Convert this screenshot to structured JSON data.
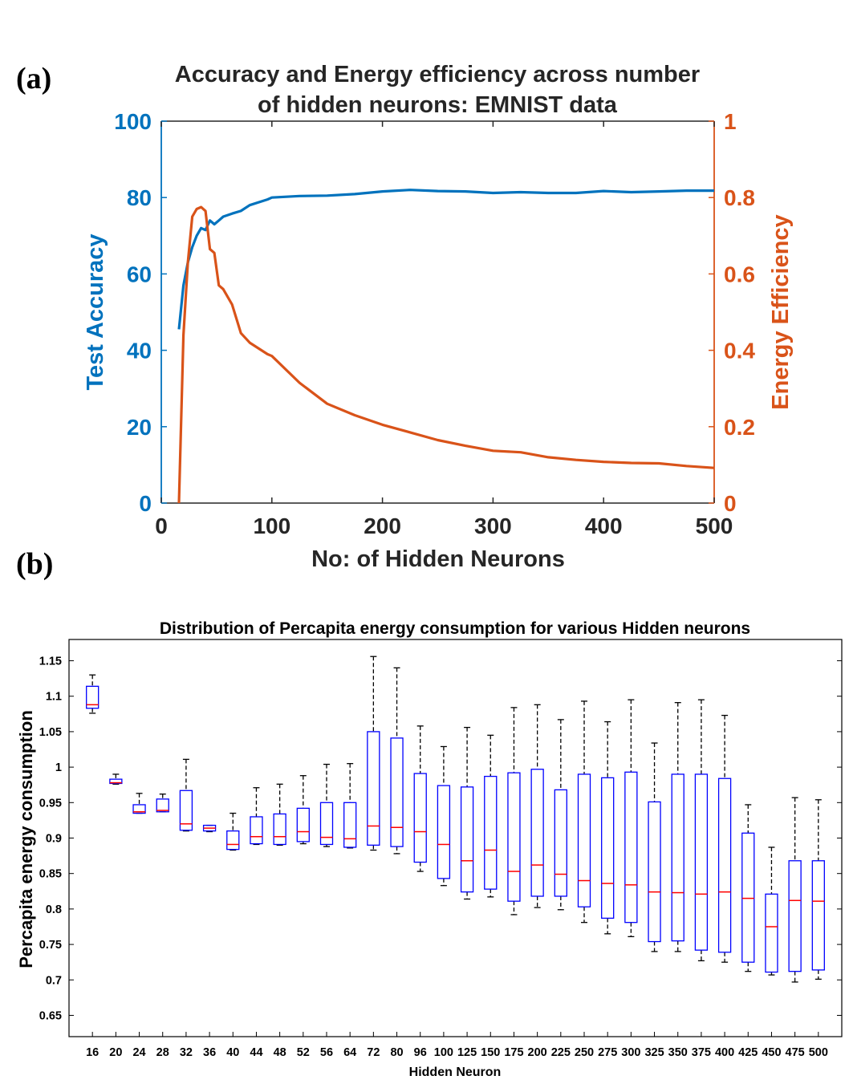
{
  "panel_a_label": "(a)",
  "panel_b_label": "(b)",
  "colors": {
    "blue": "#0072BD",
    "orange": "#D95319",
    "box": "#0000FF",
    "median": "#FF0000",
    "axis": "#262626"
  },
  "chart_data": [
    {
      "type": "line",
      "title_lines": [
        "Accuracy and Energy efficiency across number",
        "of hidden neurons: EMNIST data"
      ],
      "xlabel": "No: of Hidden Neurons",
      "ylabel_left": "Test Accuracy",
      "ylabel_right": "Energy Efficiency",
      "xlim": [
        0,
        500
      ],
      "ylim_left": [
        0,
        100
      ],
      "ylim_right": [
        0,
        1
      ],
      "xticks": [
        0,
        100,
        200,
        300,
        400,
        500
      ],
      "yticks_left": [
        0,
        20,
        40,
        60,
        80,
        100
      ],
      "yticks_right": [
        0,
        0.2,
        0.4,
        0.6,
        0.8,
        1
      ],
      "yticklabels_right": [
        "0",
        "0.2",
        "0.4",
        "0.6",
        "0.8",
        "1"
      ],
      "grid": false,
      "series": [
        {
          "axis": "left",
          "color": "#0072BD",
          "x": [
            16,
            20,
            24,
            28,
            32,
            36,
            40,
            44,
            48,
            52,
            56,
            64,
            72,
            80,
            96,
            100,
            125,
            150,
            175,
            200,
            225,
            250,
            275,
            300,
            325,
            350,
            375,
            400,
            425,
            450,
            475,
            500
          ],
          "y": [
            45.5,
            57,
            63,
            67,
            70,
            72,
            71.5,
            74,
            73,
            74,
            75,
            75.8,
            76.5,
            78,
            79.5,
            80,
            80.4,
            80.5,
            80.9,
            81.6,
            82,
            81.7,
            81.6,
            81.2,
            81.4,
            81.2,
            81.2,
            81.7,
            81.4,
            81.6,
            81.8,
            81.8
          ]
        },
        {
          "axis": "right",
          "color": "#D95319",
          "x": [
            16,
            20,
            24,
            28,
            32,
            36,
            40,
            44,
            48,
            52,
            56,
            64,
            72,
            80,
            96,
            100,
            125,
            150,
            175,
            200,
            225,
            250,
            275,
            300,
            325,
            350,
            375,
            400,
            425,
            450,
            475,
            500
          ],
          "y": [
            0.0,
            0.44,
            0.63,
            0.75,
            0.77,
            0.775,
            0.765,
            0.665,
            0.655,
            0.57,
            0.56,
            0.52,
            0.445,
            0.42,
            0.39,
            0.385,
            0.315,
            0.26,
            0.23,
            0.205,
            0.185,
            0.165,
            0.15,
            0.137,
            0.133,
            0.12,
            0.113,
            0.108,
            0.105,
            0.104,
            0.097,
            0.092
          ]
        }
      ]
    },
    {
      "type": "box",
      "title": "Distribution of Percapita energy consumption for various Hidden neurons",
      "xlabel": "Hidden Neuron",
      "ylabel": "Percapita energy consumption",
      "ylim": [
        0.62,
        1.18
      ],
      "yticks": [
        0.65,
        0.7,
        0.75,
        0.8,
        0.85,
        0.9,
        0.95,
        1,
        1.05,
        1.1,
        1.15
      ],
      "categories": [
        "16",
        "20",
        "24",
        "28",
        "32",
        "36",
        "40",
        "44",
        "48",
        "52",
        "56",
        "64",
        "72",
        "80",
        "96",
        "100",
        "125",
        "150",
        "175",
        "200",
        "225",
        "250",
        "275",
        "300",
        "325",
        "350",
        "375",
        "400",
        "425",
        "450",
        "475",
        "500"
      ],
      "boxes": [
        {
          "min": 1.076,
          "q1": 1.083,
          "median": 1.088,
          "q3": 1.114,
          "max": 1.13
        },
        {
          "min": 0.976,
          "q1": 0.977,
          "median": 0.978,
          "q3": 0.983,
          "max": 0.99
        },
        {
          "min": 0.935,
          "q1": 0.935,
          "median": 0.937,
          "q3": 0.947,
          "max": 0.963
        },
        {
          "min": 0.937,
          "q1": 0.937,
          "median": 0.939,
          "q3": 0.955,
          "max": 0.962
        },
        {
          "min": 0.91,
          "q1": 0.911,
          "median": 0.92,
          "q3": 0.967,
          "max": 1.011
        },
        {
          "min": 0.909,
          "q1": 0.91,
          "median": 0.914,
          "q3": 0.918,
          "max": 0.918
        },
        {
          "min": 0.883,
          "q1": 0.884,
          "median": 0.891,
          "q3": 0.91,
          "max": 0.935
        },
        {
          "min": 0.891,
          "q1": 0.892,
          "median": 0.902,
          "q3": 0.93,
          "max": 0.971
        },
        {
          "min": 0.89,
          "q1": 0.891,
          "median": 0.902,
          "q3": 0.934,
          "max": 0.976
        },
        {
          "min": 0.892,
          "q1": 0.895,
          "median": 0.909,
          "q3": 0.942,
          "max": 0.988
        },
        {
          "min": 0.888,
          "q1": 0.891,
          "median": 0.901,
          "q3": 0.95,
          "max": 1.004
        },
        {
          "min": 0.886,
          "q1": 0.887,
          "median": 0.899,
          "q3": 0.95,
          "max": 1.005
        },
        {
          "min": 0.883,
          "q1": 0.89,
          "median": 0.917,
          "q3": 1.05,
          "max": 1.156
        },
        {
          "min": 0.878,
          "q1": 0.888,
          "median": 0.915,
          "q3": 1.041,
          "max": 1.14
        },
        {
          "min": 0.853,
          "q1": 0.866,
          "median": 0.909,
          "q3": 0.991,
          "max": 1.058
        },
        {
          "min": 0.833,
          "q1": 0.843,
          "median": 0.891,
          "q3": 0.974,
          "max": 1.029
        },
        {
          "min": 0.814,
          "q1": 0.824,
          "median": 0.868,
          "q3": 0.972,
          "max": 1.056
        },
        {
          "min": 0.817,
          "q1": 0.828,
          "median": 0.883,
          "q3": 0.987,
          "max": 1.045
        },
        {
          "min": 0.792,
          "q1": 0.811,
          "median": 0.853,
          "q3": 0.992,
          "max": 1.084
        },
        {
          "min": 0.802,
          "q1": 0.818,
          "median": 0.862,
          "q3": 0.997,
          "max": 1.088
        },
        {
          "min": 0.799,
          "q1": 0.818,
          "median": 0.849,
          "q3": 0.968,
          "max": 1.067
        },
        {
          "min": 0.781,
          "q1": 0.803,
          "median": 0.84,
          "q3": 0.99,
          "max": 1.093
        },
        {
          "min": 0.765,
          "q1": 0.787,
          "median": 0.836,
          "q3": 0.985,
          "max": 1.064
        },
        {
          "min": 0.761,
          "q1": 0.781,
          "median": 0.834,
          "q3": 0.993,
          "max": 1.095
        },
        {
          "min": 0.74,
          "q1": 0.754,
          "median": 0.824,
          "q3": 0.951,
          "max": 1.034
        },
        {
          "min": 0.74,
          "q1": 0.755,
          "median": 0.823,
          "q3": 0.99,
          "max": 1.091
        },
        {
          "min": 0.727,
          "q1": 0.742,
          "median": 0.821,
          "q3": 0.99,
          "max": 1.095
        },
        {
          "min": 0.725,
          "q1": 0.739,
          "median": 0.824,
          "q3": 0.984,
          "max": 1.073
        },
        {
          "min": 0.712,
          "q1": 0.725,
          "median": 0.815,
          "q3": 0.907,
          "max": 0.947
        },
        {
          "min": 0.707,
          "q1": 0.711,
          "median": 0.775,
          "q3": 0.821,
          "max": 0.887
        },
        {
          "min": 0.697,
          "q1": 0.712,
          "median": 0.812,
          "q3": 0.868,
          "max": 0.957
        },
        {
          "min": 0.701,
          "q1": 0.714,
          "median": 0.811,
          "q3": 0.868,
          "max": 0.954
        }
      ],
      "grid": false
    }
  ]
}
